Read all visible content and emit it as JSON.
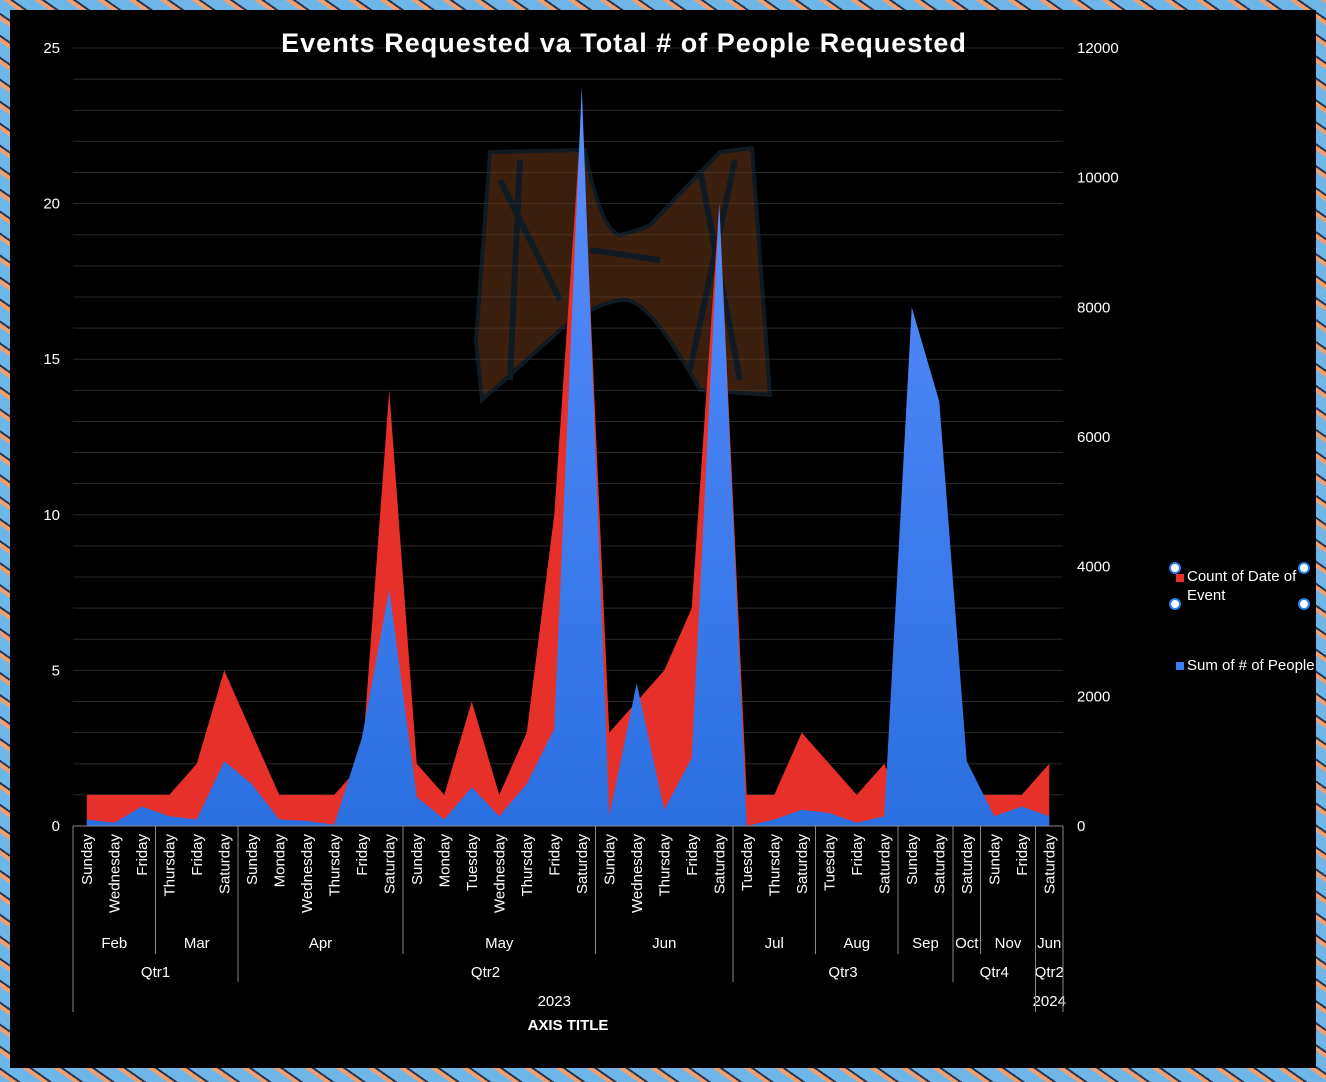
{
  "chart_data": {
    "type": "area",
    "title": "Events Requested va Total # of People Requested",
    "xlabel": "AXIS TITLE",
    "ylim_left": [
      0,
      25
    ],
    "ylim_right": [
      0,
      12000
    ],
    "y_ticks_left": [
      "0",
      "5",
      "10",
      "15",
      "20",
      "25"
    ],
    "y_ticks_right": [
      "0",
      "2000",
      "4000",
      "6000",
      "8000",
      "10000",
      "12000"
    ],
    "categories": [
      "Sunday",
      "Wednesday",
      "Friday",
      "Thursday",
      "Friday",
      "Saturday",
      "Sunday",
      "Monday",
      "Wednesday",
      "Thursday",
      "Friday",
      "Saturday",
      "Sunday",
      "Monday",
      "Tuesday",
      "Wednesday",
      "Thursday",
      "Friday",
      "Saturday",
      "Sunday",
      "Wednesday",
      "Thursday",
      "Friday",
      "Saturday",
      "Tuesday",
      "Thursday",
      "Saturday",
      "Tuesday",
      "Friday",
      "Saturday",
      "Sunday",
      "Saturday",
      "Saturday",
      "Sunday",
      "Friday",
      "Saturday"
    ],
    "months": [
      {
        "label": "Feb",
        "start": 0,
        "end": 3
      },
      {
        "label": "Mar",
        "start": 3,
        "end": 6
      },
      {
        "label": "Apr",
        "start": 6,
        "end": 12
      },
      {
        "label": "May",
        "start": 12,
        "end": 19
      },
      {
        "label": "Jun",
        "start": 19,
        "end": 24
      },
      {
        "label": "Jul",
        "start": 24,
        "end": 27
      },
      {
        "label": "Aug",
        "start": 27,
        "end": 30
      },
      {
        "label": "Sep",
        "start": 30,
        "end": 32
      },
      {
        "label": "Oct",
        "start": 32,
        "end": 33
      },
      {
        "label": "Nov",
        "start": 33,
        "end": 35
      },
      {
        "label": "Jun",
        "start": 35,
        "end": 36
      }
    ],
    "quarters": [
      {
        "label": "Qtr1",
        "start": 0,
        "end": 6
      },
      {
        "label": "Qtr2",
        "start": 6,
        "end": 24
      },
      {
        "label": "Qtr3",
        "start": 24,
        "end": 32
      },
      {
        "label": "Qtr4",
        "start": 32,
        "end": 35
      },
      {
        "label": "Qtr2",
        "start": 35,
        "end": 36
      }
    ],
    "years": [
      {
        "label": "2023",
        "start": 0,
        "end": 35
      },
      {
        "label": "2024",
        "start": 35,
        "end": 36
      }
    ],
    "series": [
      {
        "name": "Count of Date of Event",
        "axis": "left",
        "color": "#e8302a",
        "values": [
          1,
          1,
          1,
          1,
          2,
          5,
          3,
          1,
          1,
          1,
          2,
          14,
          2,
          1,
          4,
          1,
          3,
          10,
          23,
          3,
          4,
          5,
          7,
          20,
          1,
          1,
          3,
          2,
          1,
          2,
          0,
          0,
          1,
          1,
          1,
          2
        ]
      },
      {
        "name": "Sum of # of People",
        "axis": "right",
        "color": "#3b7ff5",
        "values": [
          100,
          50,
          300,
          150,
          100,
          1000,
          650,
          100,
          80,
          20,
          1350,
          3650,
          450,
          100,
          600,
          150,
          650,
          1500,
          11400,
          150,
          2200,
          250,
          1050,
          9600,
          0,
          100,
          250,
          200,
          50,
          150,
          8000,
          6550,
          1000,
          150,
          300,
          150
        ]
      }
    ],
    "legend_position": "right"
  }
}
